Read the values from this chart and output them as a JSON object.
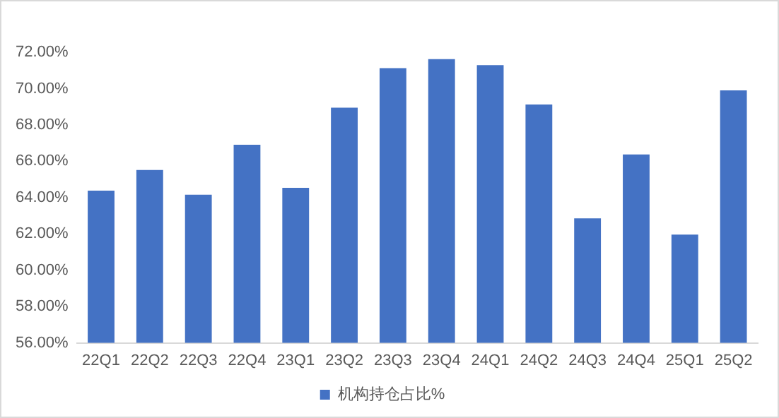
{
  "chart_data": {
    "type": "bar",
    "categories": [
      "22Q1",
      "22Q2",
      "22Q3",
      "22Q4",
      "23Q1",
      "23Q2",
      "23Q3",
      "23Q4",
      "24Q1",
      "24Q2",
      "24Q3",
      "24Q4",
      "25Q1",
      "25Q2"
    ],
    "series": [
      {
        "name": "机构持仓占比%",
        "color": "#4472c4",
        "values": [
          64.38,
          65.52,
          64.16,
          66.91,
          64.54,
          68.95,
          71.13,
          71.62,
          71.29,
          69.12,
          62.86,
          66.37,
          61.96,
          69.9
        ]
      }
    ],
    "ylim": [
      56,
      72
    ],
    "yticks": [
      {
        "value": 56,
        "label": "56.00%"
      },
      {
        "value": 58,
        "label": "58.00%"
      },
      {
        "value": 60,
        "label": "60.00%"
      },
      {
        "value": 62,
        "label": "62.00%"
      },
      {
        "value": 64,
        "label": "64.00%"
      },
      {
        "value": 66,
        "label": "66.00%"
      },
      {
        "value": 68,
        "label": "68.00%"
      },
      {
        "value": 70,
        "label": "70.00%"
      },
      {
        "value": 72,
        "label": "72.00%"
      }
    ],
    "grid": false,
    "legend": "bottom"
  }
}
